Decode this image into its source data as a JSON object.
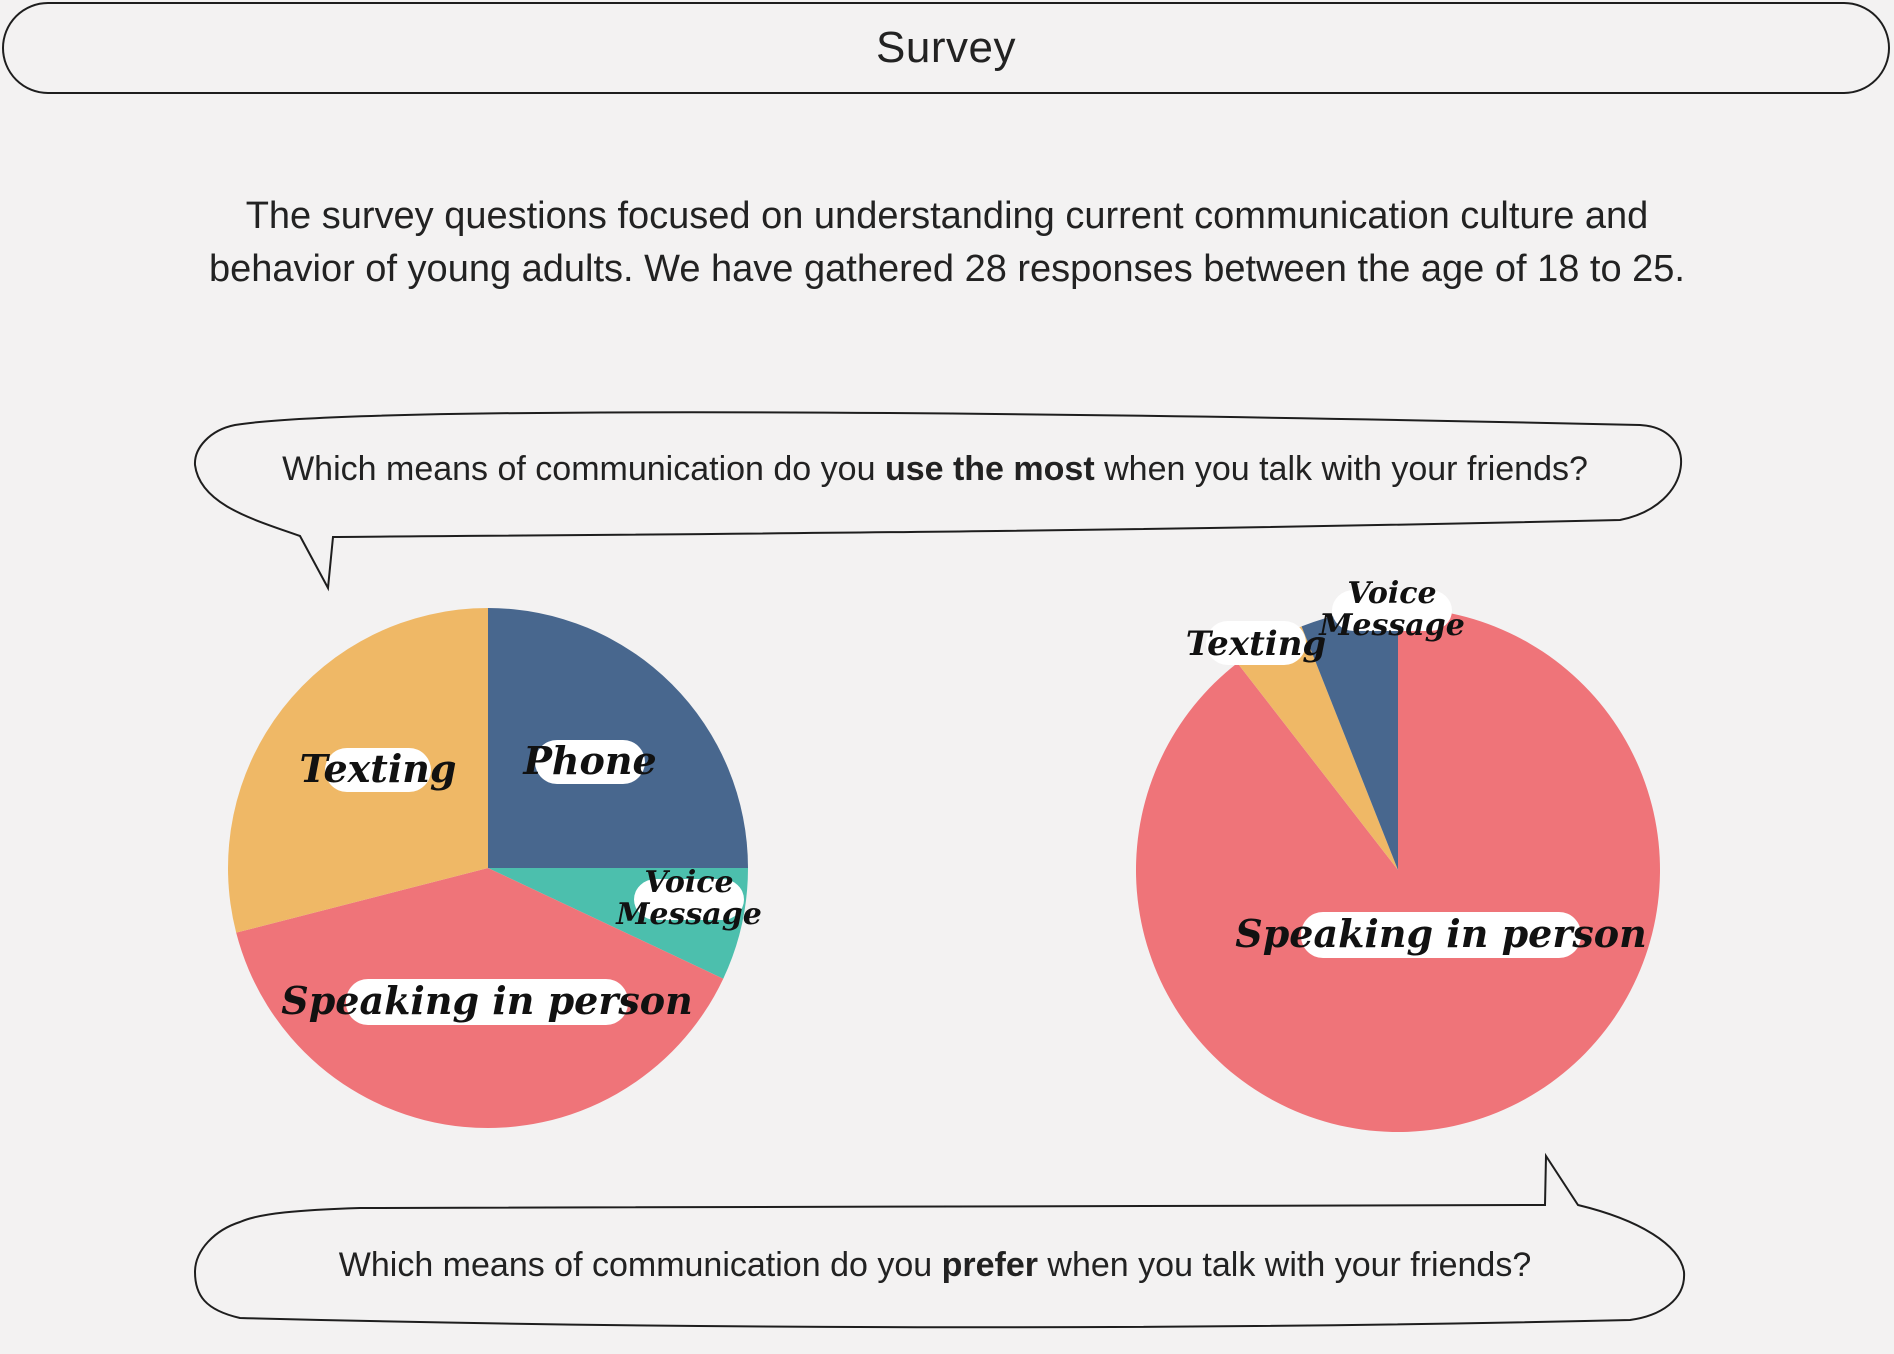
{
  "header": {
    "title": "Survey"
  },
  "intro": {
    "line1": "The survey questions focused on understanding current communication culture and",
    "line2": "behavior of young adults. We have gathered 28 responses between the age of 18 to 25."
  },
  "questions": {
    "most": {
      "before": "Which means of communication do you ",
      "emph": "use the most",
      "after": " when you talk with your friends?"
    },
    "prefer": {
      "before": "Which means of communication do you ",
      "emph": "prefer",
      "after": " when you talk with your friends?"
    }
  },
  "colors": {
    "phone": "#48678e",
    "voice_message_teal": "#4cbfad",
    "speaking": "#ef7479",
    "texting": "#efb866",
    "voice_message_blue": "#48678e"
  },
  "chart_data": [
    {
      "type": "pie",
      "title": "",
      "slices": [
        {
          "label": "Phone",
          "value": 25,
          "color": "#48678e"
        },
        {
          "label": "Voice Message",
          "value": 7,
          "color": "#4cbfad"
        },
        {
          "label": "Speaking in person",
          "value": 39,
          "color": "#ef7479"
        },
        {
          "label": "Texting",
          "value": 29,
          "color": "#efb866"
        }
      ]
    },
    {
      "type": "pie",
      "title": "",
      "slices": [
        {
          "label": "Speaking in person",
          "value": 89.5,
          "color": "#ef7479"
        },
        {
          "label": "Texting",
          "value": 4.5,
          "color": "#efb866"
        },
        {
          "label": "Voice Message",
          "value": 6,
          "color": "#48678e"
        }
      ]
    }
  ]
}
